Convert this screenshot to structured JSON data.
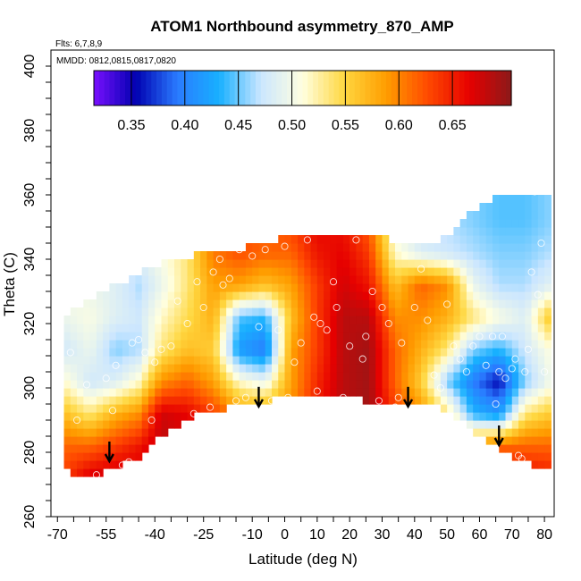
{
  "chart_data": {
    "type": "heatmap",
    "title": "ATOM1 Northbound asymmetry_870_AMP",
    "flights_note": "Flts: 6,7,8,9",
    "dates_note": "MMDD: 0812,0815,0817,0820",
    "xlabel": "Latitude (deg N)",
    "ylabel": "Theta (C)",
    "xlim": [
      -72,
      83
    ],
    "ylim": [
      260,
      405
    ],
    "x_ticks": [
      -70,
      -55,
      -40,
      -25,
      -10,
      0,
      10,
      20,
      30,
      40,
      50,
      60,
      70,
      80
    ],
    "x_minor_step": 5,
    "y_ticks": [
      260,
      280,
      300,
      320,
      340,
      360,
      380,
      400
    ],
    "colorbar": {
      "range": [
        0.3,
        0.69
      ],
      "ticks": [
        0.35,
        0.4,
        0.45,
        0.5,
        0.55,
        0.6,
        0.65
      ],
      "tick_labels": [
        "0.35",
        "0.40",
        "0.45",
        "0.50",
        "0.55",
        "0.60",
        "0.65"
      ],
      "colors": [
        "#7a10ff",
        "#0000b0",
        "#2a7bff",
        "#18b0ff",
        "#cbe6ff",
        "#ffffe0",
        "#ffd740",
        "#ff9d00",
        "#ff4a00",
        "#e60000",
        "#8b1a1a"
      ]
    },
    "field": {
      "lat_grid": [
        -68,
        -60,
        -52,
        -45,
        -38,
        -30,
        -22,
        -14,
        -6,
        2,
        10,
        18,
        26,
        34,
        42,
        50,
        58,
        66,
        74,
        81
      ],
      "upper_boundary_theta": [
        322,
        327,
        332,
        336,
        339,
        341,
        342,
        343,
        345,
        347,
        348,
        348,
        347,
        346,
        344,
        347,
        355,
        360,
        360,
        359
      ],
      "lower_boundary_theta": [
        274,
        273,
        275,
        278,
        285,
        291,
        293,
        295,
        296,
        297,
        298,
        297,
        296,
        296,
        296,
        293,
        287,
        281,
        277,
        275
      ],
      "theta_grid": [
        272,
        282,
        292,
        302,
        312,
        322,
        332,
        342,
        352,
        362
      ],
      "values": [
        [
          0.62,
          0.6,
          0.55,
          0.5,
          0.46,
          0.48,
          0.49,
          0.49,
          0.49,
          0.49
        ],
        [
          0.66,
          0.6,
          0.52,
          0.46,
          0.48,
          0.49,
          0.48,
          0.47,
          0.47,
          0.47
        ],
        [
          0.67,
          0.62,
          0.56,
          0.47,
          0.44,
          0.47,
          0.47,
          0.46,
          0.46,
          0.46
        ],
        [
          0.66,
          0.64,
          0.58,
          0.5,
          0.45,
          0.46,
          0.45,
          0.47,
          0.47,
          0.47
        ],
        [
          0.66,
          0.67,
          0.66,
          0.58,
          0.52,
          0.5,
          0.48,
          0.49,
          0.49,
          0.49
        ],
        [
          0.66,
          0.66,
          0.65,
          0.6,
          0.55,
          0.53,
          0.52,
          0.52,
          0.52,
          0.52
        ],
        [
          0.64,
          0.63,
          0.62,
          0.57,
          0.54,
          0.56,
          0.57,
          0.59,
          0.59,
          0.59
        ],
        [
          0.61,
          0.6,
          0.58,
          0.5,
          0.4,
          0.43,
          0.57,
          0.61,
          0.61,
          0.61
        ],
        [
          0.6,
          0.58,
          0.57,
          0.48,
          0.38,
          0.42,
          0.55,
          0.6,
          0.6,
          0.6
        ],
        [
          0.62,
          0.6,
          0.58,
          0.57,
          0.57,
          0.55,
          0.57,
          0.6,
          0.62,
          0.62
        ],
        [
          0.66,
          0.65,
          0.64,
          0.63,
          0.62,
          0.62,
          0.62,
          0.64,
          0.65,
          0.65
        ],
        [
          0.67,
          0.67,
          0.67,
          0.67,
          0.67,
          0.67,
          0.66,
          0.65,
          0.64,
          0.64
        ],
        [
          0.67,
          0.68,
          0.68,
          0.68,
          0.68,
          0.67,
          0.64,
          0.62,
          0.6,
          0.6
        ],
        [
          0.66,
          0.64,
          0.62,
          0.6,
          0.6,
          0.58,
          0.55,
          0.5,
          0.48,
          0.48
        ],
        [
          0.65,
          0.62,
          0.58,
          0.54,
          0.56,
          0.58,
          0.6,
          0.47,
          0.45,
          0.45
        ],
        [
          0.64,
          0.6,
          0.52,
          0.44,
          0.52,
          0.56,
          0.58,
          0.46,
          0.45,
          0.45
        ],
        [
          0.65,
          0.58,
          0.42,
          0.38,
          0.44,
          0.52,
          0.48,
          0.45,
          0.44,
          0.44
        ],
        [
          0.66,
          0.6,
          0.4,
          0.34,
          0.42,
          0.49,
          0.45,
          0.44,
          0.43,
          0.43
        ],
        [
          0.65,
          0.6,
          0.52,
          0.44,
          0.46,
          0.47,
          0.45,
          0.44,
          0.43,
          0.43
        ],
        [
          0.64,
          0.6,
          0.54,
          0.48,
          0.49,
          0.54,
          0.47,
          0.45,
          0.44,
          0.44
        ]
      ]
    },
    "arrows_lat_theta": [
      [
        -54,
        280
      ],
      [
        -8,
        297
      ],
      [
        38,
        297
      ],
      [
        66,
        285
      ]
    ],
    "sample_points": [
      [
        -66,
        311
      ],
      [
        -64,
        290
      ],
      [
        -61,
        301
      ],
      [
        -58,
        273
      ],
      [
        -55,
        303
      ],
      [
        -53,
        293
      ],
      [
        -52,
        307
      ],
      [
        -50,
        276
      ],
      [
        -48,
        277
      ],
      [
        -47,
        314
      ],
      [
        -45,
        315
      ],
      [
        -43,
        311
      ],
      [
        -41,
        290
      ],
      [
        -40,
        308
      ],
      [
        -38,
        312
      ],
      [
        -35,
        313
      ],
      [
        -33,
        327
      ],
      [
        -30,
        320
      ],
      [
        -28,
        292
      ],
      [
        -27,
        333
      ],
      [
        -25,
        325
      ],
      [
        -23,
        294
      ],
      [
        -22,
        336
      ],
      [
        -20,
        340
      ],
      [
        -19,
        332
      ],
      [
        -17,
        334
      ],
      [
        -15,
        296
      ],
      [
        -14,
        343
      ],
      [
        -12,
        297
      ],
      [
        -10,
        341
      ],
      [
        -8,
        319
      ],
      [
        -6,
        343
      ],
      [
        -4,
        296
      ],
      [
        -2,
        318
      ],
      [
        0,
        344
      ],
      [
        1,
        297
      ],
      [
        3,
        308
      ],
      [
        5,
        314
      ],
      [
        7,
        346
      ],
      [
        9,
        322
      ],
      [
        10,
        299
      ],
      [
        11,
        320
      ],
      [
        13,
        318
      ],
      [
        15,
        333
      ],
      [
        16,
        325
      ],
      [
        18,
        297
      ],
      [
        20,
        313
      ],
      [
        22,
        346
      ],
      [
        24,
        309
      ],
      [
        25,
        316
      ],
      [
        27,
        330
      ],
      [
        29,
        296
      ],
      [
        30,
        325
      ],
      [
        32,
        320
      ],
      [
        34,
        294
      ],
      [
        35,
        297
      ],
      [
        36,
        314
      ],
      [
        38,
        348
      ],
      [
        40,
        325
      ],
      [
        42,
        337
      ],
      [
        44,
        321
      ],
      [
        46,
        304
      ],
      [
        48,
        300
      ],
      [
        50,
        326
      ],
      [
        52,
        313
      ],
      [
        54,
        309
      ],
      [
        56,
        305
      ],
      [
        58,
        313
      ],
      [
        60,
        316
      ],
      [
        62,
        307
      ],
      [
        64,
        316
      ],
      [
        65,
        295
      ],
      [
        66,
        305
      ],
      [
        67,
        316
      ],
      [
        68,
        303
      ],
      [
        70,
        306
      ],
      [
        71,
        309
      ],
      [
        72,
        279
      ],
      [
        73,
        278
      ],
      [
        74,
        305
      ],
      [
        75,
        312
      ],
      [
        76,
        336
      ],
      [
        77,
        361
      ],
      [
        78,
        329
      ],
      [
        79,
        345
      ],
      [
        80,
        305
      ]
    ]
  }
}
